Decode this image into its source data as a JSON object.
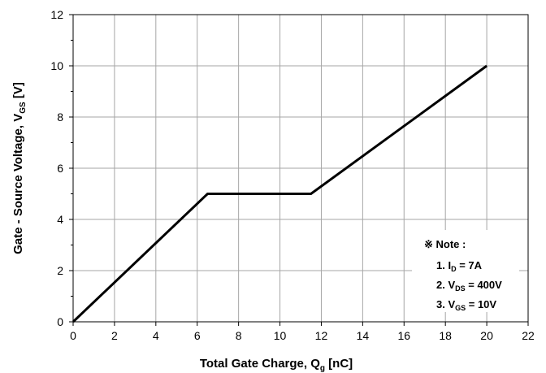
{
  "chart_data": {
    "type": "line",
    "xlabel": {
      "main": "Total Gate Charge, Q",
      "sub": "g",
      "unit": " [nC]"
    },
    "ylabel": {
      "main": "Gate - Source Voltage, V",
      "sub": "GS",
      "unit": " [V]"
    },
    "xlim": [
      0,
      22
    ],
    "ylim": [
      0,
      12
    ],
    "xticks": [
      0,
      2,
      4,
      6,
      8,
      10,
      12,
      14,
      16,
      18,
      20,
      22
    ],
    "yticks": [
      0,
      2,
      4,
      6,
      8,
      10,
      12
    ],
    "grid": true,
    "series": [
      {
        "x": [
          0,
          6.5,
          11.5,
          20
        ],
        "y": [
          0,
          5.0,
          5.0,
          10.0
        ]
      }
    ],
    "note": {
      "title": "※ Note :",
      "lines": [
        {
          "prefix": "1. I",
          "sub": "D",
          "suffix": " = 7A"
        },
        {
          "prefix": "2. V",
          "sub": "DS",
          "suffix": " = 400V"
        },
        {
          "prefix": "3. V",
          "sub": "GS",
          "suffix": " = 10V"
        }
      ]
    },
    "colors": {
      "line": "#000000",
      "grid": "#a6a6a6",
      "axis": "#000000"
    }
  }
}
